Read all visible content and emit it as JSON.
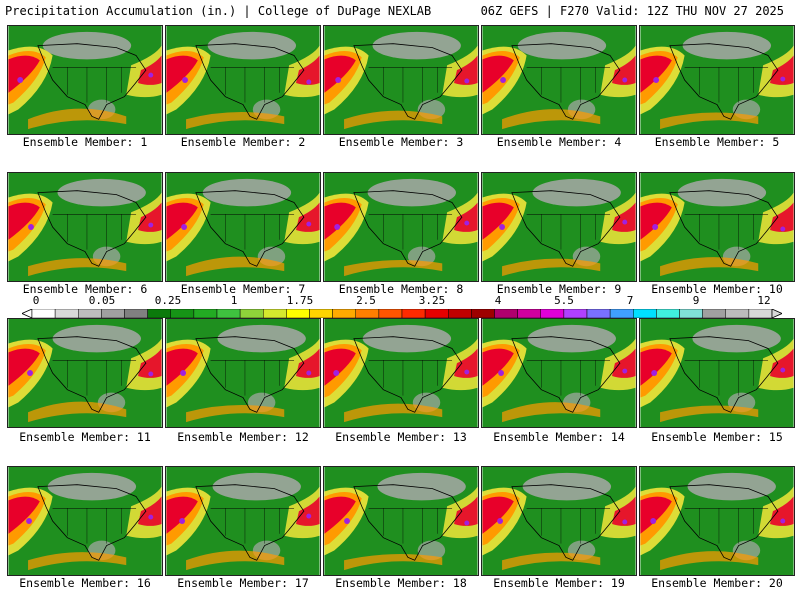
{
  "header": {
    "title_left": "Precipitation Accumulation (in.) | College of DuPage NEXLAB",
    "title_right": "06Z GEFS | F270 Valid: 12Z THU NOV 27 2025"
  },
  "panels": [
    {
      "label": "Ensemble Member: 1"
    },
    {
      "label": "Ensemble Member: 2"
    },
    {
      "label": "Ensemble Member: 3"
    },
    {
      "label": "Ensemble Member: 4"
    },
    {
      "label": "Ensemble Member: 5"
    },
    {
      "label": "Ensemble Member: 6"
    },
    {
      "label": "Ensemble Member: 7"
    },
    {
      "label": "Ensemble Member: 8"
    },
    {
      "label": "Ensemble Member: 9"
    },
    {
      "label": "Ensemble Member: 10"
    },
    {
      "label": "Ensemble Member: 11"
    },
    {
      "label": "Ensemble Member: 12"
    },
    {
      "label": "Ensemble Member: 13"
    },
    {
      "label": "Ensemble Member: 14"
    },
    {
      "label": "Ensemble Member: 15"
    },
    {
      "label": "Ensemble Member: 16"
    },
    {
      "label": "Ensemble Member: 17"
    },
    {
      "label": "Ensemble Member: 18"
    },
    {
      "label": "Ensemble Member: 19"
    },
    {
      "label": "Ensemble Member: 20"
    }
  ],
  "colorbar": {
    "ticks": [
      "0",
      "0.05",
      "0.25",
      "1",
      "1.75",
      "2.5",
      "3.25",
      "4",
      "5.5",
      "7",
      "9",
      "12"
    ],
    "colors": [
      "#ffffff",
      "#d9d9d9",
      "#bdbdbd",
      "#a0a0a0",
      "#808080",
      "#0b7a0b",
      "#169416",
      "#23ab23",
      "#3fc23f",
      "#8fd23a",
      "#d6e82e",
      "#ffff00",
      "#ffd400",
      "#ffaa00",
      "#ff7f00",
      "#ff5500",
      "#ff2a00",
      "#e60000",
      "#c20000",
      "#9e0000",
      "#b0006e",
      "#d0009e",
      "#e000d8",
      "#b040ff",
      "#7a70ff",
      "#40a0ff",
      "#00e0ff",
      "#40f0e0",
      "#80e0d8",
      "#a0a0a0",
      "#bcbcbc",
      "#d8d8d8"
    ]
  },
  "map_colors": {
    "ocean_green": "#1f8f1f",
    "heavy_red": "#e8002a",
    "orange": "#ff9a00",
    "yellow": "#f2e63a",
    "purple": "#a020e0",
    "gray": "#a8a8a8",
    "outline": "#000000"
  }
}
